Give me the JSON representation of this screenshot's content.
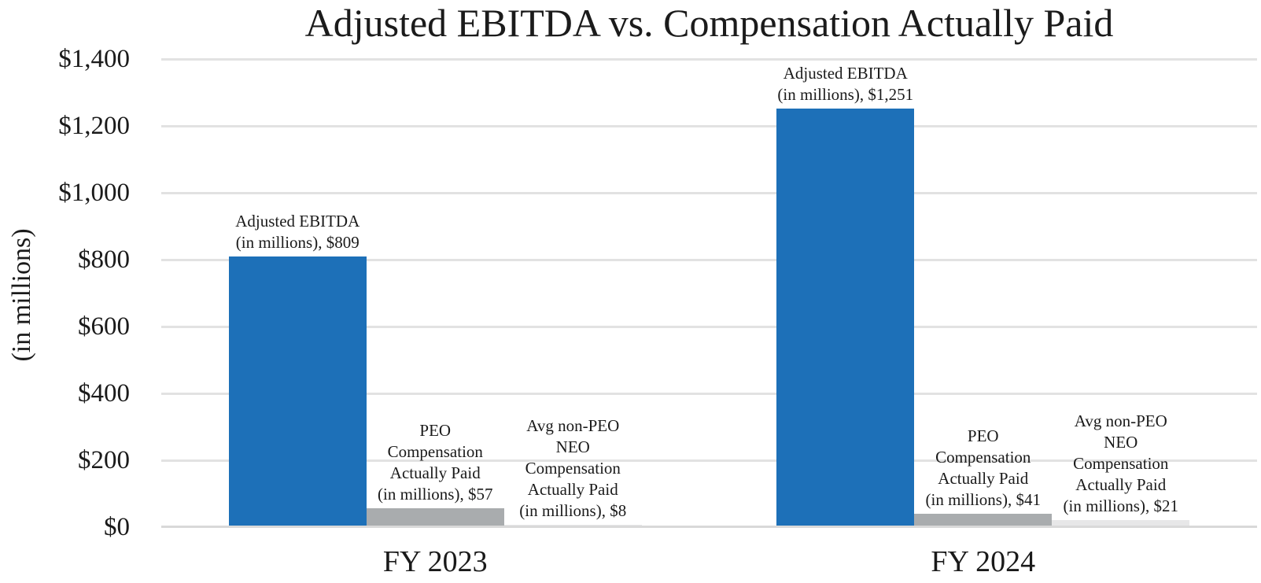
{
  "chart_data": {
    "type": "bar",
    "title": "Adjusted EBITDA vs. Compensation Actually Paid",
    "ylabel": "(in millions)",
    "categories": [
      "FY 2023",
      "FY 2024"
    ],
    "y_ticks": [
      "$1,400",
      "$1,200",
      "$1,000",
      "$800",
      "$600",
      "$400",
      "$200",
      "$0"
    ],
    "ylim": [
      0,
      1400
    ],
    "grid": true,
    "legend": "none",
    "series": [
      {
        "name": "Adjusted EBITDA (in millions)",
        "color": "#1D70B8",
        "values": [
          809,
          1251
        ],
        "data_labels": [
          [
            "Adjusted EBITDA",
            "(in millions), $809"
          ],
          [
            "Adjusted EBITDA",
            "(in millions), $1,251"
          ]
        ]
      },
      {
        "name": "PEO Compensation Actually Paid (in millions)",
        "color": "#A9ACAE",
        "values": [
          57,
          41
        ],
        "data_labels": [
          [
            "PEO",
            "Compensation",
            "Actually Paid",
            "(in millions), $57"
          ],
          [
            "PEO",
            "Compensation",
            "Actually Paid",
            "(in millions), $41"
          ]
        ]
      },
      {
        "name": "Avg non-PEO NEO Compensation Actually Paid (in millions)",
        "color": "#E7E7E8",
        "values": [
          8,
          21
        ],
        "data_labels": [
          [
            "Avg non-PEO",
            "NEO",
            "Compensation",
            "Actually Paid",
            "(in millions), $8"
          ],
          [
            "Avg non-PEO",
            "NEO",
            "Compensation",
            "Actually Paid",
            "(in millions), $21"
          ]
        ]
      }
    ],
    "colors": {
      "gridline": "#E2E2E2",
      "axis_line": "#D9D9D9",
      "text": "#1A1A1A",
      "background": "#FFFFFF"
    }
  }
}
